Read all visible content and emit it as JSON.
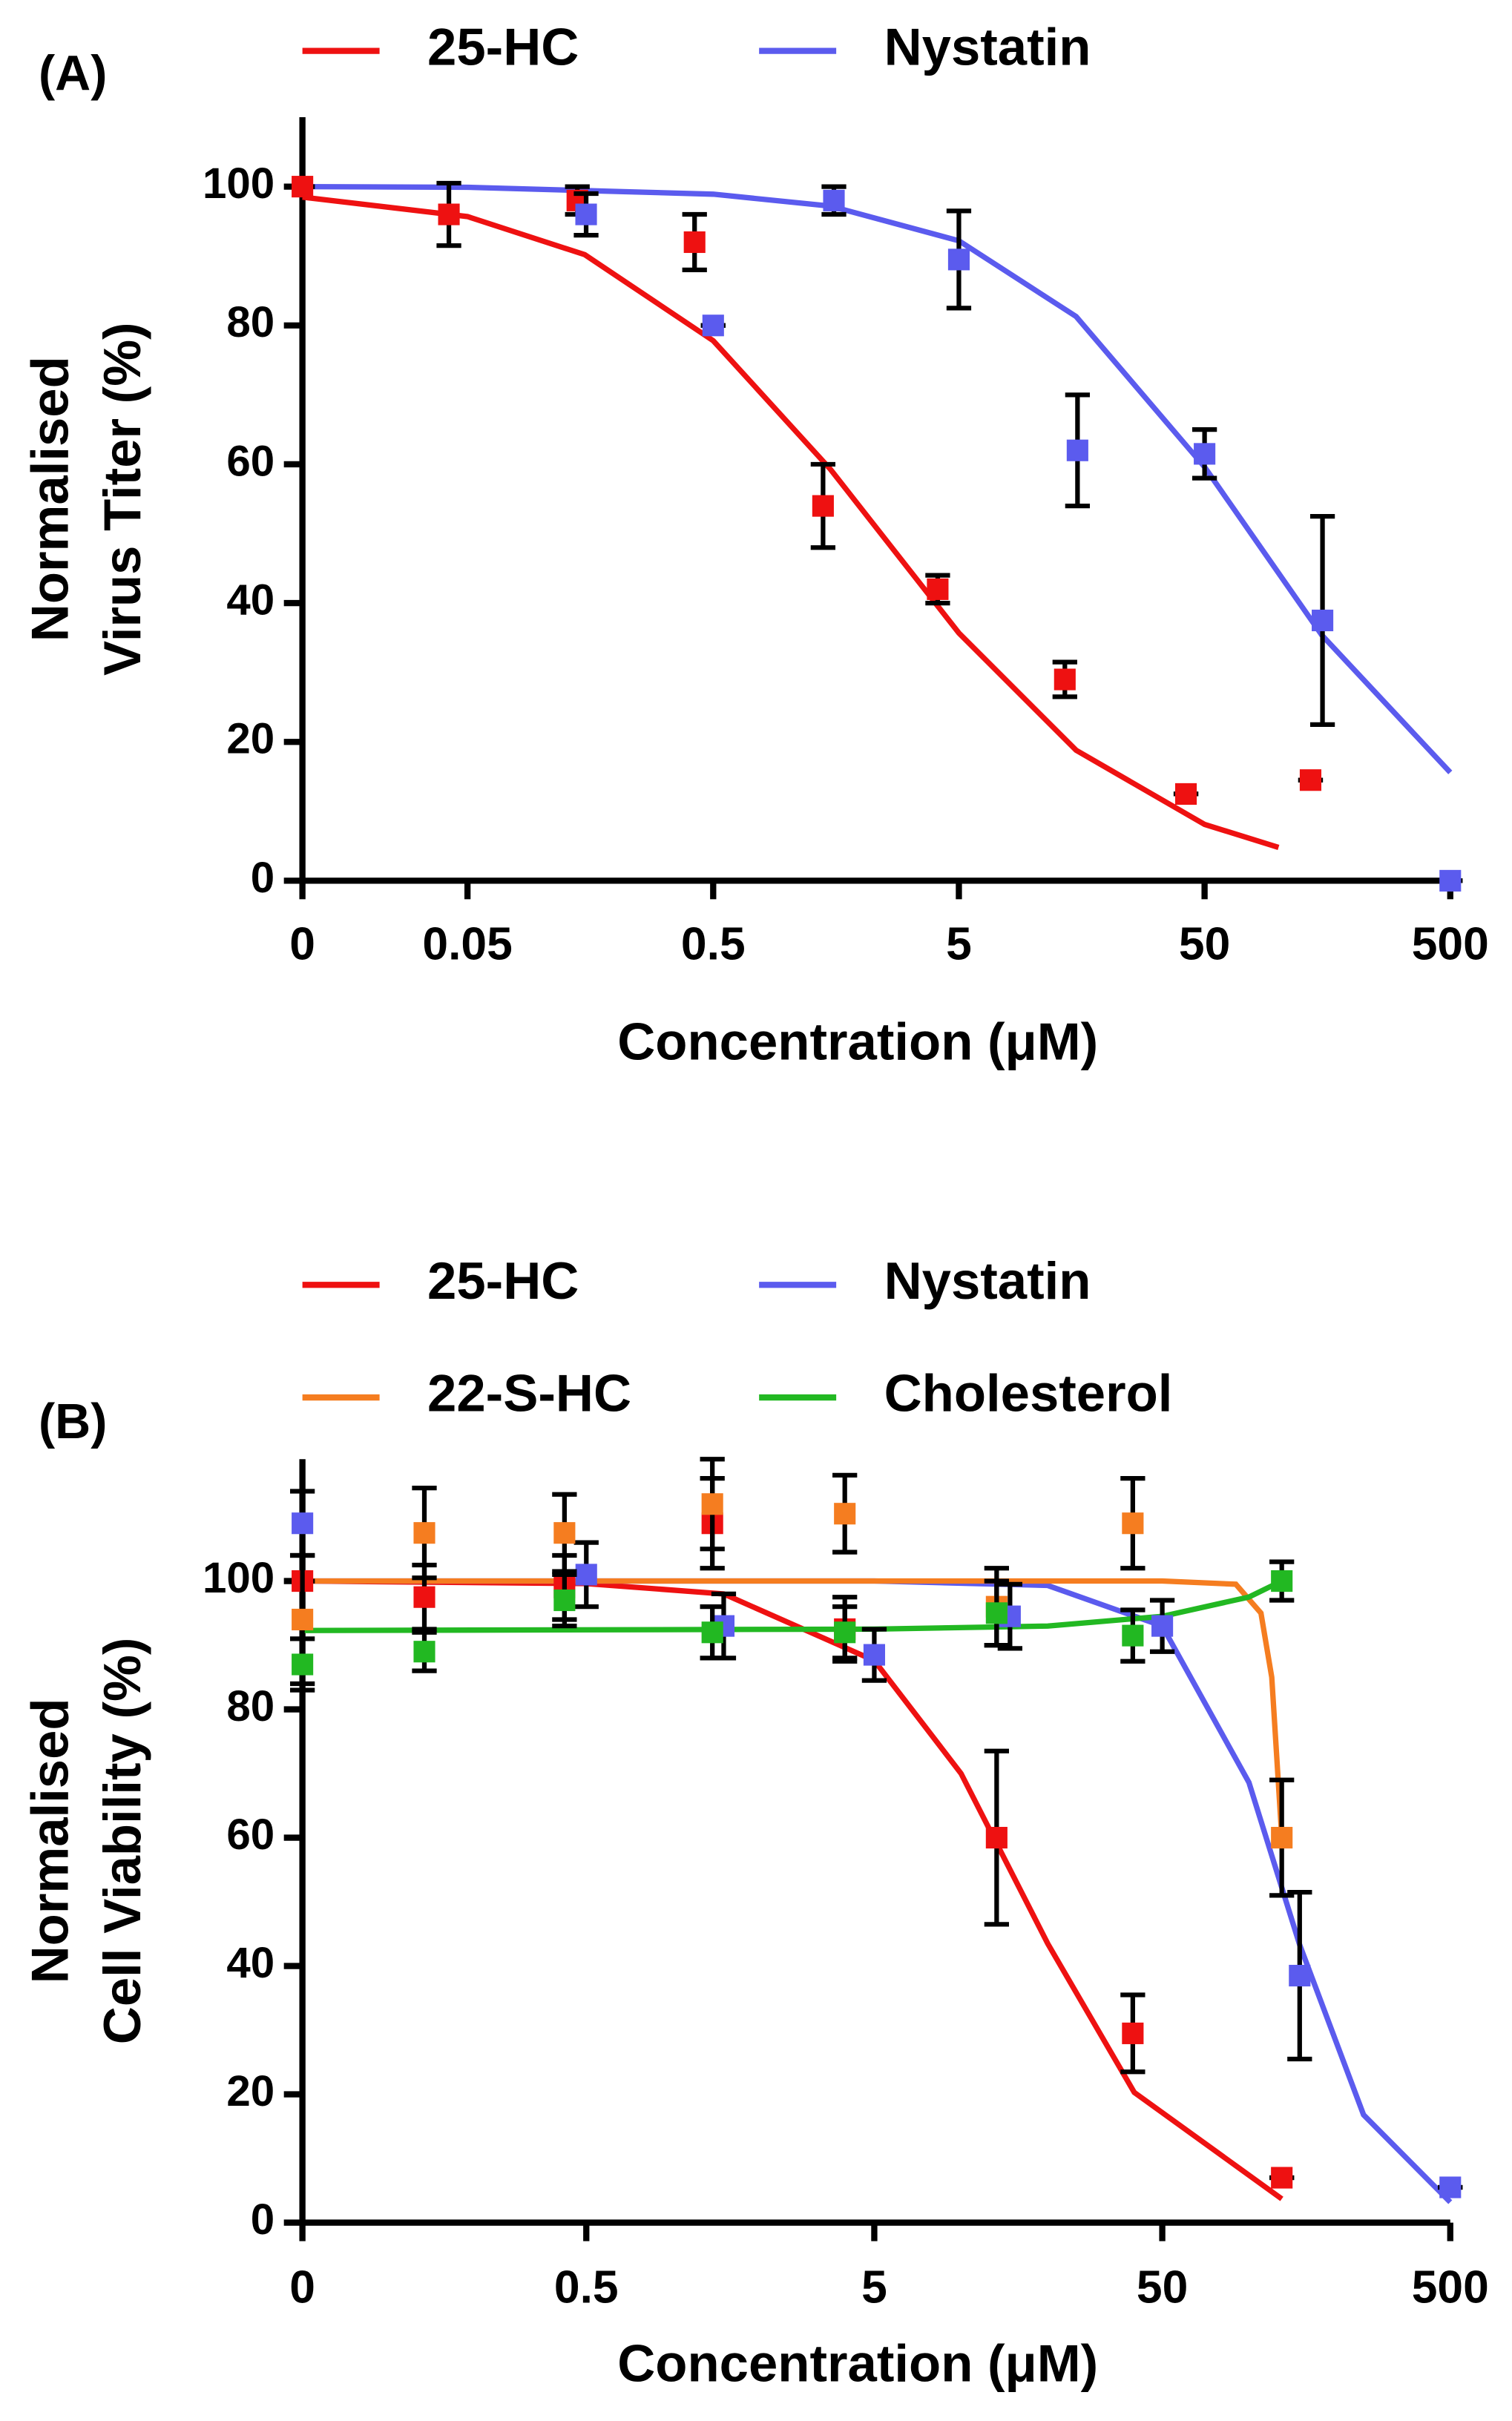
{
  "chart_data": [
    {
      "type": "scatter",
      "panel_label": "(A)",
      "ylabel": [
        "Normalised",
        "Virus Titer (%)"
      ],
      "xlabel": "Concentration  (μM)",
      "xscale": "log",
      "xlim": [
        0,
        500
      ],
      "xticks": [
        0,
        0.05,
        0.5,
        5,
        50,
        500
      ],
      "ylim": [
        0,
        110
      ],
      "yticks": [
        0,
        20,
        40,
        60,
        80,
        100
      ],
      "series": [
        {
          "name": "25-HC",
          "color": "#ee1111",
          "x": [
            0,
            0.042,
            0.14,
            0.42,
            1.4,
            4.1,
            13.5,
            42,
            135
          ],
          "values": [
            100,
            96,
            98,
            92,
            54,
            42,
            29,
            12.5,
            14.5
          ],
          "errors": [
            0,
            4.5,
            2,
            4,
            6,
            2,
            2.5,
            0,
            0
          ],
          "fit_x": [
            0,
            0.05,
            0.15,
            0.5,
            1.5,
            5,
            15,
            50,
            100
          ],
          "fit_y": [
            98.5,
            95.7,
            90.2,
            77.8,
            59.3,
            35.7,
            18.8,
            8.1,
            4.8
          ]
        },
        {
          "name": "Nystatin",
          "color": "#5b5bee",
          "x": [
            0.152,
            0.5,
            1.55,
            5,
            15.2,
            50,
            151,
            500
          ],
          "values": [
            96,
            80,
            98,
            89.5,
            62,
            61.5,
            37.5,
            0
          ],
          "errors": [
            3,
            0,
            2,
            7,
            8,
            3.5,
            15,
            0
          ],
          "fit_x": [
            0,
            0.05,
            0.5,
            1.5,
            5,
            15,
            50,
            150,
            500
          ],
          "fit_y": [
            100,
            99.9,
            98.9,
            97.2,
            92.2,
            81.3,
            59.6,
            35.4,
            15.6
          ]
        }
      ]
    },
    {
      "type": "scatter",
      "panel_label": "(B)",
      "ylabel": [
        "Normalised",
        "Cell Viability (%)"
      ],
      "xlabel": "Concentration  (μM)",
      "xscale": "log",
      "xlim": [
        0,
        500
      ],
      "xticks": [
        0,
        0.5,
        5,
        50,
        500
      ],
      "ylim": [
        0,
        119
      ],
      "yticks": [
        0,
        20,
        40,
        60,
        80,
        100
      ],
      "series": [
        {
          "name": "25-HC",
          "color": "#ee1111",
          "x": [
            0,
            0.137,
            0.42,
            1.37,
            3.95,
            13.3,
            39.5,
            130
          ],
          "values": [
            100,
            97.5,
            99,
            109,
            92.5,
            60,
            29.5,
            7
          ],
          "errors": [
            0,
            5,
            5,
            7,
            5,
            13.5,
            6,
            0
          ],
          "fit_x": [
            0,
            0.5,
            1.5,
            5,
            10,
            20,
            40,
            130
          ],
          "fit_y": [
            100,
            99.6,
            98,
            87.6,
            70,
            43.5,
            20.3,
            3.7
          ]
        },
        {
          "name": "Nystatin",
          "color": "#5b5bee",
          "x": [
            0,
            0.5,
            1.5,
            5,
            14.8,
            50,
            150,
            500
          ],
          "values": [
            109,
            101,
            93,
            88.5,
            94.5,
            93,
            38.5,
            5.5
          ],
          "errors": [
            5,
            5,
            5,
            4,
            5,
            4,
            13,
            0
          ],
          "fit_x": [
            0,
            5,
            20,
            50,
            100,
            150,
            250,
            500
          ],
          "fit_y": [
            100,
            100,
            99.3,
            93,
            68.6,
            43.3,
            16.8,
            3.2
          ]
        },
        {
          "name": "22-S-HC",
          "color": "#f57d20",
          "x": [
            0,
            0.137,
            0.42,
            1.37,
            3.95,
            13.3,
            39.5,
            130
          ],
          "values": [
            94,
            107.5,
            107.5,
            112,
            110.5,
            96,
            109,
            60
          ],
          "errors": [
            10,
            7,
            6,
            7,
            6,
            6,
            7,
            9
          ],
          "fit_x": [
            0,
            50,
            90,
            110,
            120,
            130
          ],
          "fit_y": [
            100,
            100,
            99.5,
            95,
            85,
            60
          ]
        },
        {
          "name": "Cholesterol",
          "color": "#22b822",
          "x": [
            0,
            0.137,
            0.42,
            1.37,
            3.95,
            13.3,
            39.5,
            130
          ],
          "values": [
            87,
            89,
            97,
            92,
            92,
            95,
            91.5,
            100
          ],
          "errors": [
            4,
            3,
            4,
            4,
            4,
            5,
            4,
            3
          ],
          "fit_x": [
            0,
            5,
            20,
            50,
            100,
            130
          ],
          "fit_y": [
            92.3,
            92.5,
            93,
            94.5,
            97.5,
            100
          ]
        }
      ]
    }
  ]
}
